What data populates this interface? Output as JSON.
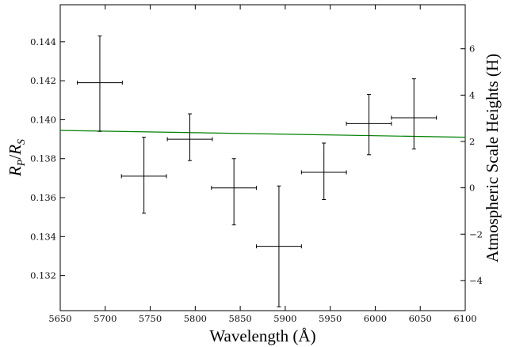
{
  "chart_data": {
    "type": "scatter",
    "xlabel": "Wavelength (Å)",
    "ylabel": "R_P/R_S",
    "ylabel_right": "Atmospheric Scale Heights (H)",
    "xlim": [
      5650,
      6100
    ],
    "ylim": [
      0.1302,
      0.1459
    ],
    "ylim_right": [
      -5.3,
      7.9
    ],
    "x_ticks": [
      5650,
      5700,
      5750,
      5800,
      5850,
      5900,
      5950,
      6000,
      6050,
      6100
    ],
    "y_ticks": [
      0.132,
      0.134,
      0.136,
      0.138,
      0.14,
      0.142,
      0.144
    ],
    "y_right_ticks": [
      -4,
      -2,
      0,
      2,
      4,
      6
    ],
    "grid": false,
    "points": [
      {
        "x": 5694,
        "y": 0.1419,
        "xerr": 25,
        "yerr_low": 0.0025,
        "yerr_high": 0.0024
      },
      {
        "x": 5743,
        "y": 0.1371,
        "xerr": 25,
        "yerr_low": 0.0019,
        "yerr_high": 0.002
      },
      {
        "x": 5794,
        "y": 0.139,
        "xerr": 25,
        "yerr_low": 0.0011,
        "yerr_high": 0.0013
      },
      {
        "x": 5843,
        "y": 0.1365,
        "xerr": 25,
        "yerr_low": 0.0019,
        "yerr_high": 0.0015
      },
      {
        "x": 5893,
        "y": 0.1335,
        "xerr": 25,
        "yerr_low": 0.0031,
        "yerr_high": 0.0031
      },
      {
        "x": 5943,
        "y": 0.1373,
        "xerr": 25,
        "yerr_low": 0.0014,
        "yerr_high": 0.0015
      },
      {
        "x": 5993,
        "y": 0.1398,
        "xerr": 25,
        "yerr_low": 0.0016,
        "yerr_high": 0.0015
      },
      {
        "x": 6043,
        "y": 0.1401,
        "xerr": 25,
        "yerr_low": 0.0016,
        "yerr_high": 0.002
      }
    ],
    "model_line": {
      "x": [
        5650,
        6100
      ],
      "y": [
        0.13945,
        0.1391
      ],
      "color": "#008000"
    },
    "point_color": "#000000"
  }
}
